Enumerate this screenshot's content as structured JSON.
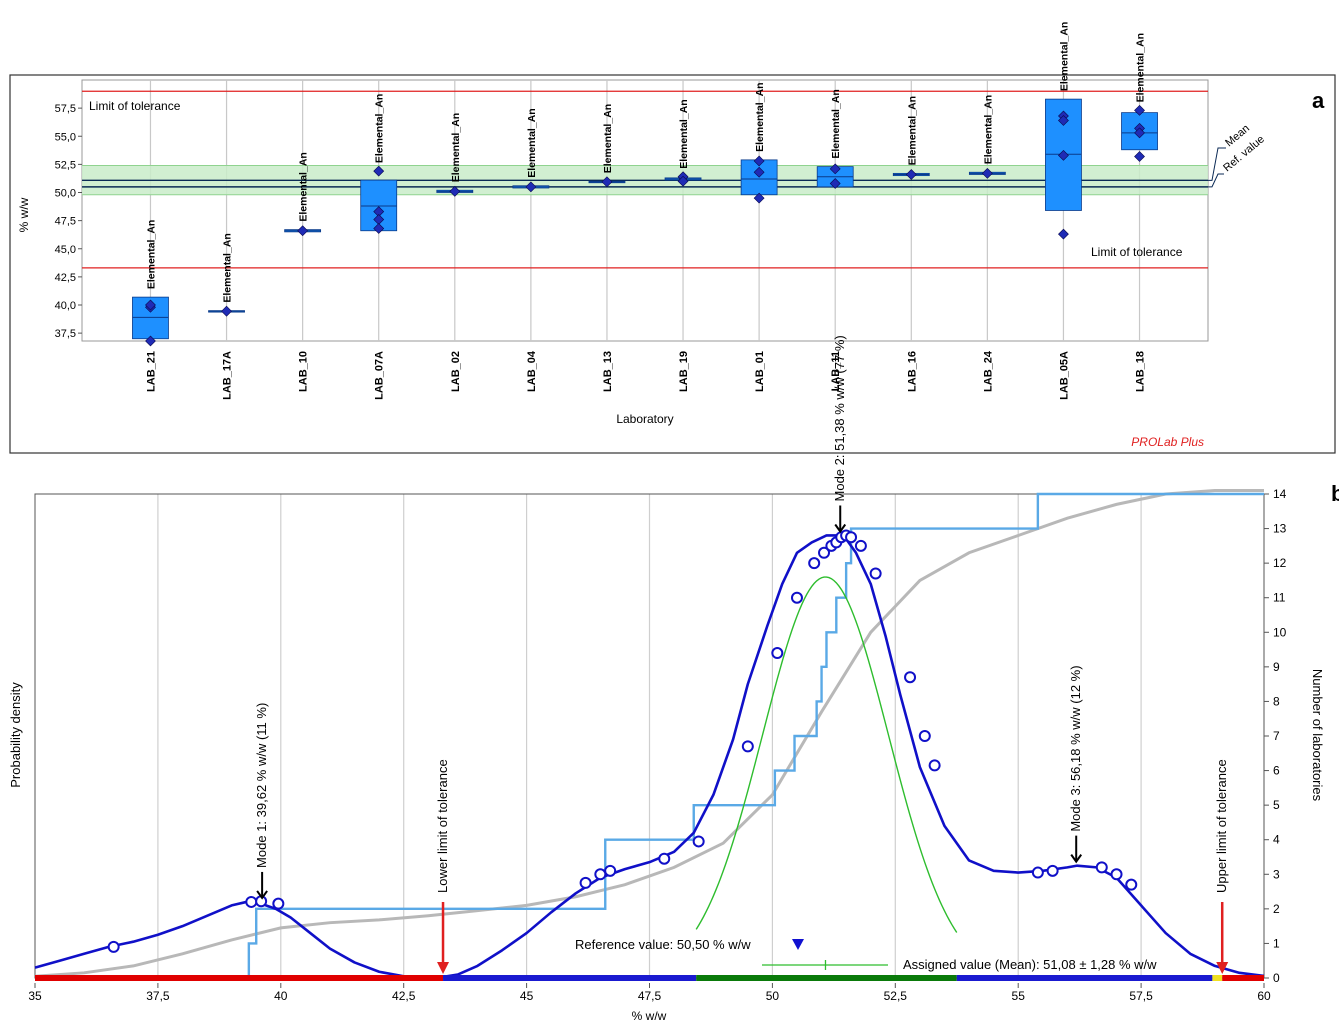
{
  "chart_data": [
    {
      "type": "boxplot",
      "panel_label": "a",
      "ylabel": "% w/w",
      "xlabel": "Laboratory",
      "ylim": [
        36.8,
        60.0
      ],
      "yticks": [
        "57,5",
        "55,0",
        "52,5",
        "50,0",
        "47,5",
        "45,0",
        "42,5",
        "40,0",
        "37,5"
      ],
      "ytick_values": [
        57.5,
        55.0,
        52.5,
        50.0,
        47.5,
        45.0,
        42.5,
        40.0,
        37.5
      ],
      "limit_upper": 59.0,
      "limit_lower": 43.3,
      "limit_upper_label": "Limit of tolerance",
      "limit_lower_label": "Limit of tolerance",
      "mean": 51.08,
      "ref_value": 50.5,
      "band": [
        49.8,
        52.4
      ],
      "mean_label": "Mean",
      "ref_label": "Ref. value",
      "watermark": "PROLab Plus",
      "series_label": "Elemental_An",
      "colors": {
        "box": "#1e90ff",
        "box_edge": "#0a3a8a",
        "point": "#1f2bb5",
        "limit": "#e02020",
        "band": "#c9ecc9"
      },
      "categories": [
        "LAB_21",
        "LAB_17A",
        "LAB_10",
        "LAB_07A",
        "LAB_02",
        "LAB_04",
        "LAB_13",
        "LAB_19",
        "LAB_01",
        "LAB_11",
        "LAB_16",
        "LAB_24",
        "LAB_05A",
        "LAB_18"
      ],
      "boxes": [
        {
          "lab": "LAB_21",
          "min": 37.0,
          "max": 40.7,
          "median": 38.9,
          "points": [
            39.8,
            40.0,
            36.8
          ]
        },
        {
          "lab": "LAB_17A",
          "min": 39.4,
          "max": 39.5,
          "median": 39.45,
          "points": [
            39.45
          ]
        },
        {
          "lab": "LAB_10",
          "min": 46.5,
          "max": 46.7,
          "median": 46.6,
          "points": [
            46.6
          ]
        },
        {
          "lab": "LAB_07A",
          "min": 46.6,
          "max": 51.1,
          "median": 48.8,
          "points": [
            51.9,
            48.3,
            47.6,
            46.8
          ]
        },
        {
          "lab": "LAB_02",
          "min": 50.0,
          "max": 50.2,
          "median": 50.1,
          "points": [
            50.1
          ]
        },
        {
          "lab": "LAB_04",
          "min": 50.4,
          "max": 50.6,
          "median": 50.5,
          "points": [
            50.5
          ]
        },
        {
          "lab": "LAB_13",
          "min": 50.9,
          "max": 51.0,
          "median": 50.95,
          "points": [
            50.95
          ]
        },
        {
          "lab": "LAB_19",
          "min": 51.1,
          "max": 51.3,
          "median": 51.2,
          "points": [
            51.4,
            51.0
          ]
        },
        {
          "lab": "LAB_01",
          "min": 49.8,
          "max": 52.9,
          "median": 51.2,
          "points": [
            52.8,
            51.8,
            49.5
          ]
        },
        {
          "lab": "LAB_11",
          "min": 50.5,
          "max": 52.3,
          "median": 51.4,
          "points": [
            52.1,
            50.8
          ]
        },
        {
          "lab": "LAB_16",
          "min": 51.5,
          "max": 51.7,
          "median": 51.6,
          "points": [
            51.6
          ]
        },
        {
          "lab": "LAB_24",
          "min": 51.6,
          "max": 51.8,
          "median": 51.7,
          "points": [
            51.7
          ]
        },
        {
          "lab": "LAB_05A",
          "min": 48.4,
          "max": 58.3,
          "median": 53.4,
          "points": [
            56.8,
            56.4,
            53.3,
            46.3
          ]
        },
        {
          "lab": "LAB_18",
          "min": 53.8,
          "max": 57.1,
          "median": 55.3,
          "points": [
            57.3,
            55.7,
            55.3,
            53.2
          ]
        }
      ]
    },
    {
      "type": "line",
      "panel_label": "b",
      "xlabel": "% w/w",
      "ylabel": "Probability density",
      "y2label": "Number of laboratories",
      "xlim": [
        35,
        60
      ],
      "xticks": [
        "35",
        "37,5",
        "40",
        "42,5",
        "45",
        "47,5",
        "50",
        "52,5",
        "55",
        "57,5",
        "60"
      ],
      "xtick_values": [
        35,
        37.5,
        40,
        42.5,
        45,
        47.5,
        50,
        52.5,
        55,
        57.5,
        60
      ],
      "y2lim": [
        0,
        14
      ],
      "y2ticks": [
        "0",
        "1",
        "2",
        "3",
        "4",
        "5",
        "6",
        "7",
        "8",
        "9",
        "10",
        "11",
        "12",
        "13",
        "14"
      ],
      "kernel_density": {
        "x": [
          35.0,
          35.5,
          36.0,
          36.5,
          37.0,
          37.5,
          38.0,
          38.5,
          39.0,
          39.3,
          39.6,
          39.9,
          40.2,
          40.6,
          41.0,
          41.5,
          42.0,
          42.5,
          43.0,
          43.3,
          43.6,
          44.0,
          44.5,
          45.0,
          45.5,
          46.0,
          46.5,
          47.0,
          47.5,
          48.0,
          48.4,
          48.8,
          49.2,
          49.5,
          49.9,
          50.2,
          50.5,
          50.8,
          51.1,
          51.3,
          51.5,
          51.7,
          52.0,
          52.3,
          52.6,
          53.0,
          53.5,
          54.0,
          54.5,
          55.0,
          55.5,
          56.0,
          56.2,
          56.6,
          57.0,
          57.5,
          58.0,
          58.5,
          59.0,
          59.5,
          60.0
        ],
        "y": [
          0.3,
          0.5,
          0.7,
          0.9,
          1.05,
          1.25,
          1.5,
          1.8,
          2.1,
          2.2,
          2.15,
          2.0,
          1.75,
          1.3,
          0.85,
          0.45,
          0.18,
          0.05,
          0.02,
          0.03,
          0.1,
          0.35,
          0.8,
          1.3,
          1.9,
          2.45,
          2.9,
          3.15,
          3.35,
          3.65,
          4.2,
          5.3,
          6.9,
          8.5,
          10.2,
          11.4,
          12.3,
          12.6,
          12.8,
          12.8,
          12.7,
          12.3,
          11.4,
          9.9,
          8.2,
          6.1,
          4.4,
          3.4,
          3.1,
          3.05,
          3.1,
          3.2,
          3.25,
          3.2,
          2.9,
          2.1,
          1.3,
          0.7,
          0.35,
          0.15,
          0.06
        ]
      },
      "markers": {
        "x": [
          36.6,
          39.4,
          39.6,
          39.95,
          46.2,
          46.5,
          46.7,
          47.8,
          48.5,
          49.5,
          50.1,
          50.5,
          50.85,
          51.05,
          51.2,
          51.3,
          51.4,
          51.5,
          51.6,
          51.8,
          52.1,
          52.8,
          53.1,
          53.3,
          55.4,
          55.7,
          56.7,
          57.0,
          57.3
        ],
        "y": [
          0.9,
          2.2,
          2.22,
          2.15,
          2.75,
          3.0,
          3.1,
          3.45,
          3.95,
          6.7,
          9.4,
          11.0,
          12.0,
          12.3,
          12.5,
          12.6,
          12.75,
          12.8,
          12.75,
          12.5,
          11.7,
          8.7,
          7.0,
          6.15,
          3.05,
          3.1,
          3.2,
          3.0,
          2.7
        ]
      },
      "cumulative_step": {
        "x": [
          38.8,
          39.35,
          39.5,
          46.6,
          46.6,
          48.4,
          50.05,
          50.45,
          50.9,
          51.0,
          51.1,
          51.3,
          51.5,
          51.6,
          53.3,
          55.4,
          60.0
        ],
        "y": [
          0,
          1,
          2,
          3,
          4,
          5,
          6,
          7,
          8,
          9,
          10,
          11,
          12,
          13,
          13,
          14,
          14
        ]
      },
      "cumulative_smooth": {
        "x": [
          35,
          36,
          37,
          38,
          39,
          40,
          41,
          42,
          43,
          44,
          45,
          46,
          47,
          48,
          49,
          50,
          51,
          52,
          53,
          54,
          55,
          56,
          57,
          58,
          59,
          60
        ],
        "y": [
          0.05,
          0.15,
          0.35,
          0.7,
          1.1,
          1.45,
          1.6,
          1.68,
          1.8,
          1.95,
          2.1,
          2.35,
          2.7,
          3.2,
          3.9,
          5.3,
          7.7,
          10.0,
          11.5,
          12.3,
          12.8,
          13.3,
          13.7,
          14.0,
          14.1,
          14.1
        ]
      },
      "normal_curve": {
        "mean": 51.08,
        "sd": 1.28,
        "peak_y": 11.6,
        "x_start": 48.45,
        "x_end": 53.75
      },
      "modes": [
        {
          "label": "Mode 1: 39,62 % w/w (11 %)",
          "x": 39.62,
          "y": 2.2
        },
        {
          "label": "Mode 2: 51,38 % w/w (77 %)",
          "x": 51.38,
          "y": 12.8
        },
        {
          "label": "Mode 3: 56,18 % w/w (12 %)",
          "x": 56.18,
          "y": 3.25
        }
      ],
      "lower_limit": 43.3,
      "upper_limit": 59.15,
      "lower_limit_label": "Lower limit of tolerance",
      "upper_limit_label": "Upper limit of tolerance",
      "reference_label": "Reference value: 50,50 % w/w",
      "reference_value": 50.5,
      "assigned_label": "Assigned value (Mean): 51,08 ± 1,28 % w/w",
      "assigned_value": 51.08,
      "assigned_uncertainty": 1.28,
      "bar_segments": [
        {
          "from": 35.0,
          "to": 43.3,
          "color": "#e00000"
        },
        {
          "from": 43.3,
          "to": 48.45,
          "color": "#1a1ad0"
        },
        {
          "from": 48.45,
          "to": 53.75,
          "color": "#0a7a0a"
        },
        {
          "from": 53.75,
          "to": 58.95,
          "color": "#1a1ad0"
        },
        {
          "from": 58.95,
          "to": 59.15,
          "color": "#f0e020"
        },
        {
          "from": 59.15,
          "to": 60.0,
          "color": "#e00000"
        }
      ],
      "colors": {
        "density": "#1010c8",
        "step": "#5aa9e6",
        "smooth": "#b8b8b8",
        "normal": "#2ebd2e",
        "limit_arrow": "#e02020"
      }
    }
  ]
}
